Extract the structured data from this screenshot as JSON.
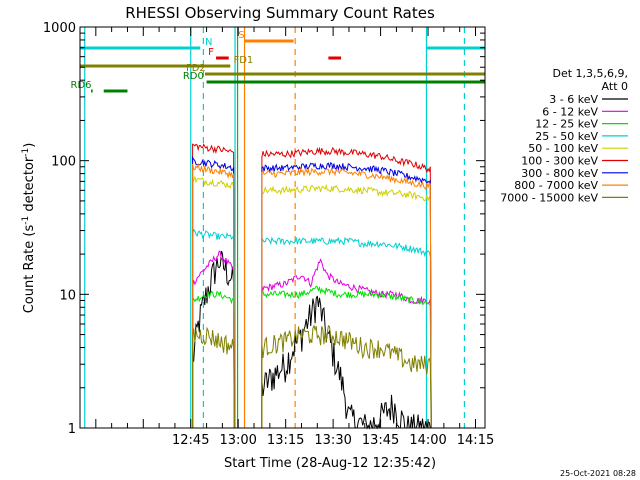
{
  "chart_data": {
    "type": "line",
    "title": "RHESSI Observing Summary Count Rates",
    "xlabel": "Start Time (28-Aug-12 12:35:42)",
    "ylabel_main": "Count Rate (s",
    "ylabel_sup1": "-1",
    "ylabel_mid": " detector",
    "ylabel_sup2": "-1",
    "ylabel_end": ")",
    "yscale": "log",
    "ylim": [
      1,
      1000
    ],
    "xlim_minutes": [
      730,
      858
    ],
    "x_ticks": [
      {
        "m": 765,
        "label": "12:45"
      },
      {
        "m": 780,
        "label": "13:00"
      },
      {
        "m": 795,
        "label": "13:15"
      },
      {
        "m": 810,
        "label": "13:30"
      },
      {
        "m": 825,
        "label": "13:45"
      },
      {
        "m": 840,
        "label": "14:00"
      },
      {
        "m": 855,
        "label": "14:15"
      }
    ],
    "y_ticks": [
      {
        "v": 1,
        "label": "1"
      },
      {
        "v": 10,
        "label": "10"
      },
      {
        "v": 100,
        "label": "100"
      },
      {
        "v": 1000,
        "label": "1000"
      }
    ],
    "legend_header": [
      "Det 1,3,5,6,9,",
      "Att 0"
    ],
    "legend_position": "right",
    "segments_minutes": [
      [
        765.6,
        778.8
      ],
      [
        787.5,
        841.0
      ]
    ],
    "series": [
      {
        "name": "3 - 6 keV",
        "color": "#000000",
        "profile": [
          [
            765.6,
            3.0
          ],
          [
            770,
            10.0
          ],
          [
            774,
            18.0
          ],
          [
            778.8,
            12.0
          ],
          [
            787.5,
            2.0
          ],
          [
            795,
            3.0
          ],
          [
            800,
            5.0
          ],
          [
            803,
            7.0
          ],
          [
            805,
            9.0
          ],
          [
            808,
            5.0
          ],
          [
            811,
            3.0
          ],
          [
            815,
            1.2
          ],
          [
            821,
            1.0
          ],
          [
            825,
            1.2
          ],
          [
            829,
            1.5
          ],
          [
            833,
            1.0
          ],
          [
            838,
            1.0
          ],
          [
            841,
            1.0
          ]
        ]
      },
      {
        "name": "6 - 12 keV",
        "color": "#e000e0",
        "profile": [
          [
            765.6,
            12.0
          ],
          [
            770,
            16.0
          ],
          [
            774,
            20.0
          ],
          [
            778.8,
            15.0
          ],
          [
            787.5,
            11.0
          ],
          [
            795,
            12.0
          ],
          [
            800,
            14.0
          ],
          [
            803,
            12.0
          ],
          [
            806,
            18.0
          ],
          [
            808,
            14.0
          ],
          [
            812,
            12.0
          ],
          [
            818,
            11.0
          ],
          [
            825,
            10.0
          ],
          [
            830,
            10.0
          ],
          [
            835,
            9.0
          ],
          [
            841,
            9.0
          ]
        ]
      },
      {
        "name": "12 - 25 keV",
        "color": "#00e000",
        "profile": [
          [
            765.6,
            9.0
          ],
          [
            770,
            10.0
          ],
          [
            774,
            10.0
          ],
          [
            778.8,
            9.0
          ],
          [
            787.5,
            10.0
          ],
          [
            795,
            10.0
          ],
          [
            800,
            10.0
          ],
          [
            805,
            11.0
          ],
          [
            812,
            10.0
          ],
          [
            818,
            10.0
          ],
          [
            825,
            10.0
          ],
          [
            830,
            9.5
          ],
          [
            835,
            9.0
          ],
          [
            841,
            8.5
          ]
        ]
      },
      {
        "name": "25 - 50 keV",
        "color": "#00d0d0",
        "profile": [
          [
            765.6,
            29.0
          ],
          [
            770,
            28.0
          ],
          [
            774,
            27.0
          ],
          [
            778.8,
            27.0
          ],
          [
            787.5,
            25.0
          ],
          [
            795,
            25.0
          ],
          [
            800,
            25.0
          ],
          [
            805,
            25.0
          ],
          [
            810,
            25.0
          ],
          [
            815,
            25.0
          ],
          [
            820,
            24.0
          ],
          [
            825,
            24.0
          ],
          [
            830,
            23.0
          ],
          [
            835,
            22.0
          ],
          [
            841,
            20.0
          ]
        ]
      },
      {
        "name": "50 - 100 keV",
        "color": "#d0d000",
        "profile": [
          [
            765.6,
            73.0
          ],
          [
            770,
            70.0
          ],
          [
            774,
            68.0
          ],
          [
            778.8,
            65.0
          ],
          [
            787.5,
            60.0
          ],
          [
            795,
            60.0
          ],
          [
            800,
            61.0
          ],
          [
            805,
            62.0
          ],
          [
            810,
            62.0
          ],
          [
            815,
            61.0
          ],
          [
            820,
            60.0
          ],
          [
            825,
            58.0
          ],
          [
            830,
            57.0
          ],
          [
            835,
            55.0
          ],
          [
            841,
            52.0
          ]
        ]
      },
      {
        "name": "100 - 300 keV",
        "color": "#e00000",
        "profile": [
          [
            765.6,
            130.0
          ],
          [
            770,
            125.0
          ],
          [
            774,
            122.0
          ],
          [
            778.8,
            115.0
          ],
          [
            787.5,
            112.0
          ],
          [
            795,
            112.0
          ],
          [
            800,
            115.0
          ],
          [
            805,
            118.0
          ],
          [
            810,
            118.0
          ],
          [
            815,
            115.0
          ],
          [
            820,
            112.0
          ],
          [
            825,
            108.0
          ],
          [
            830,
            100.0
          ],
          [
            835,
            95.0
          ],
          [
            841,
            85.0
          ]
        ]
      },
      {
        "name": "300 - 800 keV",
        "color": "#0000e0",
        "profile": [
          [
            765.6,
            100.0
          ],
          [
            770,
            96.0
          ],
          [
            774,
            93.0
          ],
          [
            778.8,
            88.0
          ],
          [
            787.5,
            88.0
          ],
          [
            795,
            88.0
          ],
          [
            800,
            90.0
          ],
          [
            805,
            92.0
          ],
          [
            810,
            92.0
          ],
          [
            815,
            90.0
          ],
          [
            820,
            88.0
          ],
          [
            825,
            85.0
          ],
          [
            830,
            80.0
          ],
          [
            835,
            75.0
          ],
          [
            841,
            70.0
          ]
        ]
      },
      {
        "name": "800 - 7000 keV",
        "color": "#ff8000",
        "profile": [
          [
            765.6,
            90.0
          ],
          [
            770,
            86.0
          ],
          [
            774,
            83.0
          ],
          [
            778.8,
            78.0
          ],
          [
            787.5,
            80.0
          ],
          [
            795,
            80.0
          ],
          [
            800,
            82.0
          ],
          [
            805,
            83.0
          ],
          [
            810,
            83.0
          ],
          [
            815,
            81.0
          ],
          [
            820,
            79.0
          ],
          [
            825,
            76.0
          ],
          [
            830,
            72.0
          ],
          [
            835,
            68.0
          ],
          [
            841,
            64.0
          ]
        ]
      },
      {
        "name": "7000 - 15000 keV",
        "color": "#808000",
        "profile": [
          [
            765.6,
            5.0
          ],
          [
            770,
            5.0
          ],
          [
            774,
            4.5
          ],
          [
            778.8,
            4.0
          ],
          [
            787.5,
            4.0
          ],
          [
            795,
            4.5
          ],
          [
            800,
            5.0
          ],
          [
            805,
            5.0
          ],
          [
            810,
            5.0
          ],
          [
            815,
            4.5
          ],
          [
            820,
            4.0
          ],
          [
            825,
            4.0
          ],
          [
            830,
            3.5
          ],
          [
            835,
            3.0
          ],
          [
            841,
            3.0
          ]
        ]
      }
    ],
    "vertical_markers": [
      {
        "m": 731.5,
        "color": "#00d0d0",
        "dash": false
      },
      {
        "m": 765.0,
        "color": "#00d0d0",
        "dash": false
      },
      {
        "m": 769.0,
        "color": "#00d0d0",
        "dash": true
      },
      {
        "m": 779.0,
        "color": "#00d0d0",
        "dash": false
      },
      {
        "m": 779.8,
        "color": "#00c000",
        "dash": false
      },
      {
        "m": 782.0,
        "color": "#ff8000",
        "dash": false
      },
      {
        "m": 798.0,
        "color": "#ff8000",
        "dash": true
      },
      {
        "m": 839.5,
        "color": "#00d0d0",
        "dash": false
      },
      {
        "m": 851.5,
        "color": "#00d0d0",
        "dash": true
      }
    ],
    "flag_bars": [
      {
        "label": "N",
        "color": "#00d0d0",
        "m0": 730,
        "m1": 768,
        "m2": 839.5,
        "m3": 858,
        "level": 1,
        "label_m": 769.5
      },
      {
        "label": "S",
        "color": "#ff8000",
        "m0": 782,
        "m1": 797.5,
        "level": 2,
        "label_m": 780
      },
      {
        "label": "F",
        "color": "#e00000",
        "m0": 773,
        "m1": 777,
        "level": 3,
        "label_m": 770.5
      },
      {
        "label": "",
        "color": "#e00000",
        "m0": 808.5,
        "m1": 812.5,
        "level": 3
      },
      {
        "label": "FD1",
        "color": "#808000",
        "m0": 730,
        "m1": 777.5,
        "level": 4,
        "label_m": 778.5
      },
      {
        "label": "FD2",
        "color": "#808000",
        "m0": 769.5,
        "m1": 858,
        "level": 5,
        "label_m": 763.5
      },
      {
        "label": "RD0",
        "color": "#008000",
        "m0": 770,
        "m1": 858,
        "level": 6,
        "label_m": 762.5
      },
      {
        "label": "RD6",
        "color": "#008000",
        "m0": 734,
        "m1": 733.5,
        "level": 7,
        "label_m": 727
      },
      {
        "label": "",
        "color": "#008000",
        "m0": 737.5,
        "m1": 745,
        "level": 7
      }
    ],
    "timestamp": "25-Oct-2021 08:28"
  }
}
